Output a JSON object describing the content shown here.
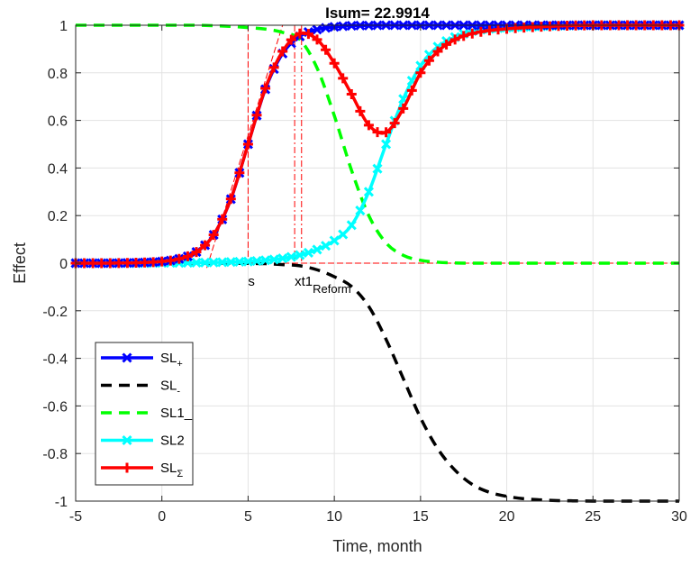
{
  "chart_data": {
    "type": "line",
    "title": "Isum= 22.9914",
    "xlabel": "Time, month",
    "ylabel": "Effect",
    "xlim": [
      -5,
      30
    ],
    "ylim": [
      -1,
      1
    ],
    "xticks": [
      -5,
      0,
      5,
      10,
      15,
      20,
      25,
      30
    ],
    "yticks": [
      -1,
      -0.8,
      -0.6,
      -0.4,
      -0.2,
      0,
      0.2,
      0.4,
      0.6,
      0.8,
      1
    ],
    "grid": true,
    "legend_position": "bottom-left",
    "x": [
      -5,
      -4,
      -3,
      -2,
      -1,
      0,
      1,
      2,
      3,
      4,
      5,
      6,
      7,
      8,
      9,
      10,
      11,
      12,
      13,
      14,
      15,
      16,
      17,
      18,
      19,
      20,
      21,
      22,
      23,
      24,
      25,
      26,
      27,
      28,
      29,
      30
    ],
    "series": [
      {
        "name": "SL+",
        "legend": {
          "base": "SL",
          "sub": "+"
        },
        "color": "#0000ff",
        "style": "solid",
        "marker": "x",
        "values": [
          0,
          0,
          0,
          0.001,
          0.003,
          0.007,
          0.018,
          0.047,
          0.119,
          0.269,
          0.5,
          0.731,
          0.881,
          0.953,
          0.982,
          0.993,
          0.998,
          0.999,
          1,
          1,
          1,
          1,
          1,
          1,
          1,
          1,
          1,
          1,
          1,
          1,
          1,
          1,
          1,
          1,
          1,
          1
        ]
      },
      {
        "name": "SL-",
        "legend": {
          "base": "SL",
          "sub": "-"
        },
        "color": "#000000",
        "style": "dashed",
        "marker": "none",
        "values": [
          0,
          0,
          0,
          0,
          0,
          0,
          0,
          0,
          0,
          0,
          -0.001,
          -0.002,
          -0.006,
          -0.011,
          -0.028,
          -0.057,
          -0.098,
          -0.182,
          -0.32,
          -0.485,
          -0.65,
          -0.78,
          -0.87,
          -0.93,
          -0.963,
          -0.98,
          -0.99,
          -0.995,
          -0.998,
          -0.999,
          -1,
          -1,
          -1,
          -1,
          -1,
          -1
        ]
      },
      {
        "name": "SL1_",
        "legend": {
          "base": "SL1_",
          "sub": ""
        },
        "color": "#00ff00",
        "style": "dashed",
        "marker": "none",
        "values": [
          1,
          1,
          1,
          1,
          1,
          1,
          1,
          1,
          0.998,
          0.995,
          0.99,
          0.984,
          0.97,
          0.94,
          0.82,
          0.62,
          0.39,
          0.2,
          0.085,
          0.033,
          0.012,
          0.004,
          0.001,
          0,
          0,
          0,
          0,
          0,
          0,
          0,
          0,
          0,
          0,
          0,
          0,
          0
        ]
      },
      {
        "name": "SL2",
        "legend": {
          "base": "SL2",
          "sub": ""
        },
        "color": "#00ffff",
        "style": "solid",
        "marker": "x",
        "values": [
          0,
          0,
          0,
          0,
          0,
          0.001,
          0.001,
          0.002,
          0.003,
          0.005,
          0.007,
          0.012,
          0.02,
          0.034,
          0.057,
          0.095,
          0.16,
          0.3,
          0.5,
          0.69,
          0.83,
          0.91,
          0.95,
          0.975,
          0.985,
          0.99,
          0.993,
          0.996,
          0.998,
          0.999,
          1,
          1,
          1,
          1,
          1,
          1
        ]
      },
      {
        "name": "SLΣ",
        "legend": {
          "base": "SL",
          "sub": "Σ"
        },
        "color": "#ff0000",
        "style": "solid",
        "marker": "+",
        "values": [
          0,
          0,
          0,
          0.001,
          0.003,
          0.007,
          0.018,
          0.047,
          0.119,
          0.27,
          0.5,
          0.735,
          0.89,
          0.965,
          0.94,
          0.84,
          0.71,
          0.58,
          0.55,
          0.65,
          0.8,
          0.89,
          0.94,
          0.965,
          0.978,
          0.985,
          0.99,
          0.994,
          0.997,
          0.999,
          1,
          1,
          1,
          1,
          1,
          1
        ]
      }
    ],
    "annotations": [
      {
        "text": "s",
        "x": 5,
        "y": 0
      },
      {
        "text": "xt1",
        "sub": "Reform",
        "x": 7.7,
        "y": 0
      }
    ],
    "reference_lines": {
      "vertical_x": [
        5,
        7.7,
        8.1
      ],
      "horizontal_y": [
        0,
        1
      ],
      "color": "#ff0000"
    }
  }
}
